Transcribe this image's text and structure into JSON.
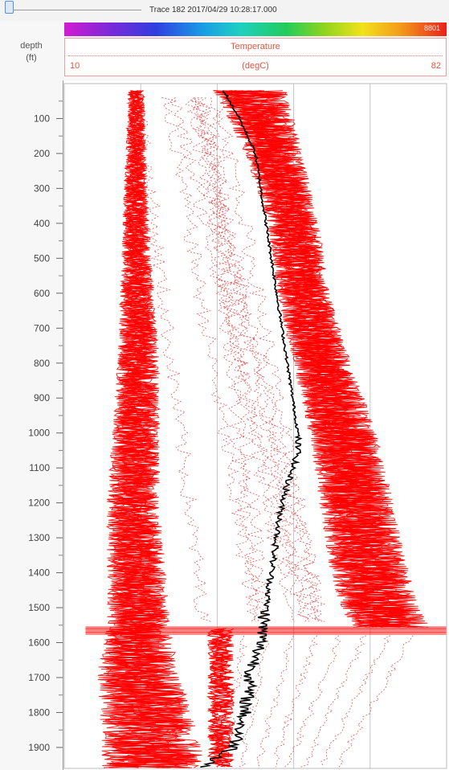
{
  "trace": {
    "label": "Trace 182  2017/04/29 10:28:17.000"
  },
  "header": {
    "depth_label": "depth",
    "depth_unit": "(ft)",
    "colorbar_max": "8801",
    "track_title": "Temperature",
    "scale_min": "10",
    "scale_unit": "(degC)",
    "scale_max": "82"
  },
  "colors": {
    "traces": "#ff0000",
    "highlight_trace": "#000000",
    "grid": "#c4c4c4"
  },
  "chart_data": {
    "type": "line",
    "title": "Temperature",
    "xlabel": "(degC)",
    "ylabel": "depth (ft)",
    "xlim": [
      10,
      82
    ],
    "ylim": [
      0,
      1960
    ],
    "y_inverted": true,
    "y_ticks": [
      100,
      200,
      300,
      400,
      500,
      600,
      700,
      800,
      900,
      1000,
      1100,
      1200,
      1300,
      1400,
      1500,
      1600,
      1700,
      1800,
      1900
    ],
    "x_gridlines": [
      24.4,
      38.8,
      53.2,
      67.6
    ],
    "series": [
      {
        "role": "band-left",
        "depth": [
          20,
          400,
          800,
          1200,
          1550,
          1700,
          1900
        ],
        "temperature": [
          [
            22,
            25
          ],
          [
            21,
            26
          ],
          [
            20,
            28
          ],
          [
            18,
            28
          ],
          [
            18,
            30
          ],
          [
            16,
            32
          ],
          [
            17,
            36
          ]
        ]
      },
      {
        "role": "band-right",
        "depth": [
          20,
          200,
          400,
          600,
          800,
          1000,
          1200,
          1400,
          1500,
          1560
        ],
        "temperature": [
          [
            38,
            52
          ],
          [
            44,
            55
          ],
          [
            48,
            58
          ],
          [
            50,
            60
          ],
          [
            53,
            64
          ],
          [
            56,
            69
          ],
          [
            58,
            72
          ],
          [
            60,
            75
          ],
          [
            62,
            77
          ],
          [
            64,
            79
          ]
        ]
      },
      {
        "role": "highlight",
        "depth": [
          20,
          100,
          200,
          300,
          400,
          500,
          600,
          700,
          800,
          900,
          1000,
          1060,
          1100,
          1200,
          1300,
          1400,
          1500,
          1600,
          1700,
          1800,
          1900,
          1960
        ],
        "temperature": [
          40,
          43,
          46,
          47,
          48,
          49,
          50,
          51,
          52,
          53,
          54,
          54,
          53,
          51,
          50,
          49,
          48,
          47,
          45,
          44,
          42,
          36
        ]
      }
    ]
  }
}
